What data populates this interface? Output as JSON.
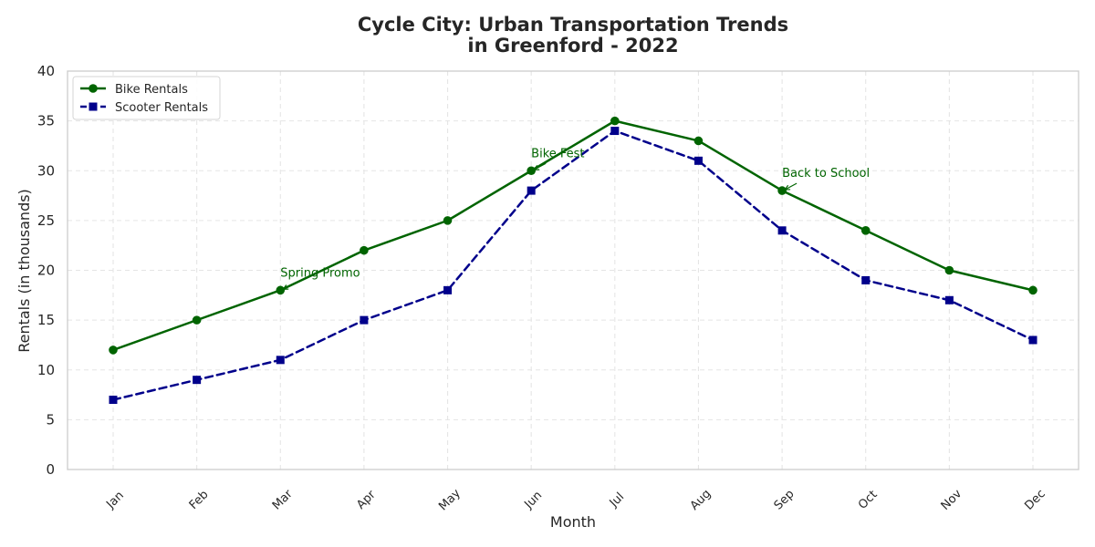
{
  "chart_data": {
    "type": "line",
    "title": [
      "Cycle City: Urban Transportation Trends",
      "in Greenford - 2022"
    ],
    "xlabel": "Month",
    "ylabel": "Rentals (in thousands)",
    "categories": [
      "Jan",
      "Feb",
      "Mar",
      "Apr",
      "May",
      "Jun",
      "Jul",
      "Aug",
      "Sep",
      "Oct",
      "Nov",
      "Dec"
    ],
    "ylim": [
      0,
      40
    ],
    "yticks": [
      0,
      5,
      10,
      15,
      20,
      25,
      30,
      35,
      40
    ],
    "grid": true,
    "legend_placement": "upper-left",
    "series": [
      {
        "name": "Bike Rentals",
        "values": [
          12,
          15,
          18,
          22,
          25,
          30,
          35,
          33,
          28,
          24,
          20,
          18
        ],
        "color": "#006400",
        "line_style": "solid",
        "marker": "circle"
      },
      {
        "name": "Scooter Rentals",
        "values": [
          7,
          9,
          11,
          15,
          18,
          28,
          34,
          31,
          24,
          19,
          17,
          13
        ],
        "color": "#00008B",
        "line_style": "dashed",
        "marker": "square"
      }
    ],
    "annotations": [
      {
        "text": "Spring Promo",
        "category": "Mar",
        "value": 18,
        "color": "#006400"
      },
      {
        "text": "Bike Fest",
        "category": "Jun",
        "value": 30,
        "color": "#006400"
      },
      {
        "text": "Back to School",
        "category": "Sep",
        "value": 28,
        "color": "#006400"
      }
    ]
  }
}
